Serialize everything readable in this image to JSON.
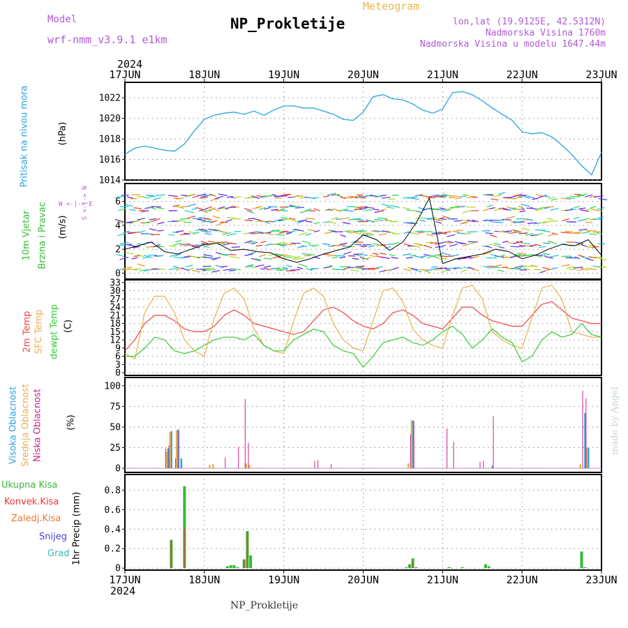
{
  "header": {
    "model_label": "Model",
    "model_name": "wrf-nmm_v3.9.1 e1km",
    "title": "NP_Prokletije",
    "meteogram": "Meteogram",
    "lonlat": "lon,lat (19.9125E, 42.5312N)",
    "altitude": "Nadmorska Visina 1760m",
    "model_altitude": "Nadmorska Visina u modelu 1647.44m",
    "year_top": "2024",
    "year_bottom": "2024"
  },
  "footer": {
    "station": "NP_Prokletije",
    "credit": "made by Angel"
  },
  "colors": {
    "pressure": "#29a3e0",
    "temp2m": "#ee4444",
    "sfc_temp": "#e8b04c",
    "dewpoint": "#33cc33",
    "total_precip": "#33bb33",
    "conv_precip": "#ee3333",
    "frozen_precip": "#ee7733",
    "snow": "#4444dd",
    "hail": "#33bbbb",
    "high_cloud": "#29a3e0",
    "mid_cloud": "#e8b04c",
    "low_cloud": "#cc2288",
    "wind_speed_line": "#000000"
  },
  "panel_labels": {
    "pressure": {
      "label": "Pritisak na nivou mora",
      "unit": "(hPa)"
    },
    "wind": {
      "label1": "10m Vjetar",
      "label2": "Brzina i Pravac",
      "unit": "(m/s)",
      "compass": "W <-|-> E",
      "compass2": "S <-|-> N"
    },
    "temp": {
      "l1": "2m Temp",
      "l2": "SFC Temp",
      "l3": "dewpt Temp",
      "unit": "(C)"
    },
    "cloud": {
      "l1": "Visoka Oblacnost",
      "l2": "Srednja Oblacnost",
      "l3": "Niska Oblacnost",
      "unit": "(%)"
    },
    "precip": {
      "total": "Ukupna Kisa",
      "conv": "Konvek.Kisa",
      "frozen": "Zaledj.Kisa",
      "snow": "Snijeg",
      "hail": "Grad",
      "unit": "1hr Precip (mm)"
    }
  },
  "chart_data": [
    {
      "type": "line",
      "name": "pressure",
      "x_ticks": [
        "17JUN",
        "18JUN",
        "19JUN",
        "20JUN",
        "21JUN",
        "22JUN",
        "23JUN"
      ],
      "ylabel": "(hPa)",
      "ylim": [
        1014,
        1023.5
      ],
      "yticks": [
        1014,
        1016,
        1018,
        1020,
        1022
      ],
      "x_hours": [
        0,
        3,
        6,
        9,
        12,
        15,
        18,
        21,
        24,
        27,
        30,
        33,
        36,
        39,
        42,
        45,
        48,
        51,
        54,
        57,
        60,
        63,
        66,
        69,
        72,
        75,
        78,
        81,
        84,
        87,
        90,
        93,
        96,
        99,
        102,
        105,
        108,
        111,
        114,
        117,
        120,
        123,
        126,
        129,
        132,
        135,
        138,
        141,
        144
      ],
      "values": [
        1016.5,
        1017.1,
        1017.3,
        1017.1,
        1016.9,
        1016.8,
        1017.5,
        1018.8,
        1019.9,
        1020.3,
        1020.5,
        1020.6,
        1020.4,
        1020.7,
        1020.3,
        1020.8,
        1021.2,
        1021.2,
        1021.0,
        1021.0,
        1020.7,
        1020.4,
        1019.9,
        1019.8,
        1020.6,
        1022.1,
        1022.3,
        1021.9,
        1021.8,
        1021.4,
        1020.8,
        1020.5,
        1020.9,
        1022.5,
        1022.6,
        1022.3,
        1021.7,
        1021.0,
        1020.4,
        1019.8,
        1018.7,
        1018.5,
        1018.6,
        1018.2,
        1017.4,
        1016.5,
        1015.4,
        1014.5,
        1016.7
      ]
    },
    {
      "type": "line",
      "name": "wind",
      "ylabel": "(m/s)",
      "ylim": [
        -0.5,
        7.5
      ],
      "yticks": [
        0,
        2,
        4,
        6
      ],
      "x_hours": [
        0,
        4,
        8,
        12,
        16,
        20,
        24,
        28,
        32,
        36,
        40,
        44,
        48,
        52,
        56,
        60,
        64,
        68,
        72,
        76,
        80,
        84,
        88,
        92,
        96,
        100,
        104,
        108,
        112,
        116,
        120,
        124,
        128,
        132,
        136,
        140,
        144
      ],
      "values": [
        2.0,
        2.3,
        2.6,
        1.8,
        1.6,
        2.0,
        2.4,
        2.5,
        1.9,
        2.0,
        1.8,
        1.7,
        1.2,
        0.9,
        1.2,
        1.6,
        1.9,
        2.2,
        3.2,
        2.8,
        1.9,
        2.6,
        4.2,
        6.3,
        0.8,
        1.2,
        1.4,
        1.6,
        2.0,
        1.8,
        1.2,
        1.5,
        2.0,
        2.4,
        2.3,
        2.8,
        1.5
      ]
    },
    {
      "type": "line",
      "name": "temperature",
      "ylabel": "(C)",
      "ylim": [
        -1,
        34
      ],
      "yticks": [
        0,
        3,
        6,
        9,
        12,
        15,
        18,
        21,
        24,
        27,
        30,
        33
      ],
      "x_hours": [
        0,
        3,
        6,
        9,
        12,
        15,
        18,
        21,
        24,
        27,
        30,
        33,
        36,
        39,
        42,
        45,
        48,
        51,
        54,
        57,
        60,
        63,
        66,
        69,
        72,
        75,
        78,
        81,
        84,
        87,
        90,
        93,
        96,
        99,
        102,
        105,
        108,
        111,
        114,
        117,
        120,
        123,
        126,
        129,
        132,
        135,
        138,
        141,
        144
      ],
      "series": [
        {
          "name": "2m Temp",
          "values": [
            8,
            12,
            18,
            21,
            21,
            19,
            16,
            15,
            15,
            17,
            21,
            23,
            21,
            18,
            17,
            16,
            15,
            14,
            15,
            19,
            23,
            24,
            22,
            19,
            17,
            16,
            18,
            22,
            23,
            21,
            18,
            17,
            16,
            20,
            24,
            24,
            21,
            19,
            18,
            17,
            17,
            21,
            25,
            26,
            23,
            20,
            19,
            18,
            18
          ]
        },
        {
          "name": "SFC Temp",
          "values": [
            7,
            5,
            22,
            28,
            28,
            22,
            12,
            8,
            6,
            20,
            29,
            31,
            27,
            16,
            10,
            8,
            7,
            19,
            29,
            31,
            28,
            18,
            12,
            9,
            8,
            19,
            30,
            31,
            26,
            16,
            12,
            10,
            9,
            21,
            31,
            32,
            27,
            15,
            12,
            10,
            9,
            20,
            31,
            32,
            27,
            15,
            14,
            13,
            13
          ]
        },
        {
          "name": "dewpt Temp",
          "values": [
            6,
            6,
            9,
            13,
            12,
            8,
            7,
            8,
            10,
            12,
            13,
            13,
            12,
            14,
            10,
            8,
            8,
            12,
            14,
            16,
            15,
            10,
            8,
            7,
            2,
            6,
            11,
            12,
            13,
            11,
            10,
            12,
            15,
            17,
            14,
            9,
            12,
            16,
            13,
            11,
            4,
            6,
            12,
            15,
            13,
            14,
            18,
            14,
            13
          ]
        }
      ]
    },
    {
      "type": "bar",
      "name": "cloud",
      "ylabel": "(%)",
      "ylim": [
        -5,
        110
      ],
      "yticks": [
        0,
        25,
        50,
        75,
        100
      ],
      "series": [
        {
          "name": "Visoka Oblacnost",
          "x_hours": [
            13,
            14,
            16,
            17,
            87,
            111,
            139,
            140
          ],
          "values": [
            24,
            45,
            47,
            12,
            58,
            3,
            67,
            25
          ]
        },
        {
          "name": "Srednja Oblacnost",
          "x_hours": [
            13,
            14,
            16,
            26,
            27,
            37,
            38,
            86,
            87,
            138,
            140
          ],
          "values": [
            20,
            44,
            46,
            4,
            5,
            6,
            4,
            6,
            58,
            5,
            25
          ]
        },
        {
          "name": "Niska Oblacnost",
          "x_hours": [
            12,
            13,
            15,
            16,
            30,
            34,
            36,
            37,
            57,
            58,
            62,
            86,
            87,
            97,
            99,
            107,
            108,
            111,
            138,
            139
          ],
          "values": [
            24,
            28,
            12,
            46,
            13,
            26,
            84,
            31,
            9,
            10,
            5,
            41,
            57,
            48,
            32,
            8,
            9,
            63,
            94,
            85
          ]
        }
      ]
    },
    {
      "type": "bar",
      "name": "precipitation",
      "ylabel": "1hr Precip (mm)",
      "ylim": [
        -0.02,
        0.96
      ],
      "yticks": [
        0,
        0.2,
        0.4,
        0.6,
        0.8
      ],
      "series": [
        {
          "name": "Ukupna Kisa",
          "x_hours": [
            14,
            18,
            31,
            32,
            33,
            34,
            36,
            37,
            38,
            85,
            86,
            87,
            88,
            98,
            102,
            109,
            110,
            138,
            139
          ],
          "values": [
            0.29,
            0.84,
            0.02,
            0.03,
            0.03,
            0.01,
            0.09,
            0.38,
            0.13,
            0.01,
            0.04,
            0.1,
            0.01,
            0.01,
            0.01,
            0.04,
            0.02,
            0.17,
            0.01
          ]
        },
        {
          "name": "Konvek.Kisa",
          "x_hours": [
            14,
            18,
            36,
            37,
            87
          ],
          "values": [
            0.29,
            0.42,
            0.08,
            0.37,
            0.07
          ]
        }
      ]
    }
  ]
}
